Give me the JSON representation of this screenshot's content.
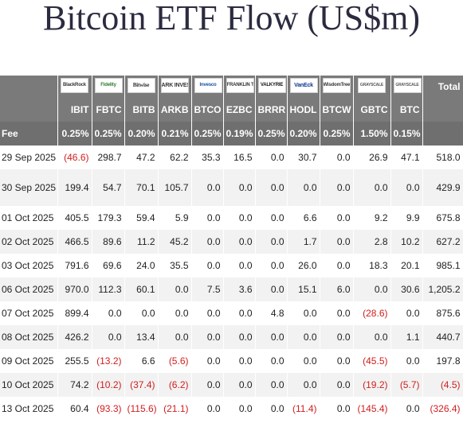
{
  "title": "Bitcoin ETF Flow (US$m)",
  "logos": [
    "BlackRock",
    "Fidelity",
    "Bitwise",
    "ARK INVEST",
    "Invesco",
    "FRANKLIN TEMPLETON",
    "VALKYRIE",
    "VanEck",
    "WisdomTree",
    "GRAYSCALE",
    "GRAYSCALE"
  ],
  "total_label": "Total",
  "tickers": [
    "IBIT",
    "FBTC",
    "BITB",
    "ARKB",
    "BTCO",
    "EZBC",
    "BRRR",
    "HODL",
    "BTCW",
    "GBTC",
    "BTC"
  ],
  "fee_label": "Fee",
  "fees": [
    "0.25%",
    "0.25%",
    "0.20%",
    "0.21%",
    "0.25%",
    "0.19%",
    "0.25%",
    "0.20%",
    "0.25%",
    "1.50%",
    "0.15%"
  ],
  "rows": [
    {
      "date": "29 Sep 2025",
      "values": [
        "(46.6)",
        "298.7",
        "47.2",
        "62.2",
        "35.3",
        "16.5",
        "0.0",
        "30.7",
        "0.0",
        "26.9",
        "47.1"
      ],
      "total": "518.0"
    },
    {
      "date": "30 Sep 2025",
      "values": [
        "199.4",
        "54.7",
        "70.1",
        "105.7",
        "0.0",
        "0.0",
        "0.0",
        "0.0",
        "0.0",
        "0.0",
        "0.0"
      ],
      "total": "429.9"
    },
    {
      "date": "01 Oct 2025",
      "values": [
        "405.5",
        "179.3",
        "59.4",
        "5.9",
        "0.0",
        "0.0",
        "0.0",
        "6.6",
        "0.0",
        "9.2",
        "9.9"
      ],
      "total": "675.8"
    },
    {
      "date": "02 Oct 2025",
      "values": [
        "466.5",
        "89.6",
        "11.2",
        "45.2",
        "0.0",
        "0.0",
        "0.0",
        "1.7",
        "0.0",
        "2.8",
        "10.2"
      ],
      "total": "627.2"
    },
    {
      "date": "03 Oct 2025",
      "values": [
        "791.6",
        "69.6",
        "24.0",
        "35.5",
        "0.0",
        "0.0",
        "0.0",
        "26.0",
        "0.0",
        "18.3",
        "20.1"
      ],
      "total": "985.1"
    },
    {
      "date": "06 Oct 2025",
      "values": [
        "970.0",
        "112.3",
        "60.1",
        "0.0",
        "7.5",
        "3.6",
        "0.0",
        "15.1",
        "6.0",
        "0.0",
        "30.6"
      ],
      "total": "1,205.2"
    },
    {
      "date": "07 Oct 2025",
      "values": [
        "899.4",
        "0.0",
        "0.0",
        "0.0",
        "0.0",
        "0.0",
        "4.8",
        "0.0",
        "0.0",
        "(28.6)",
        "0.0"
      ],
      "total": "875.6"
    },
    {
      "date": "08 Oct 2025",
      "values": [
        "426.2",
        "0.0",
        "13.4",
        "0.0",
        "0.0",
        "0.0",
        "0.0",
        "0.0",
        "0.0",
        "0.0",
        "1.1"
      ],
      "total": "440.7"
    },
    {
      "date": "09 Oct 2025",
      "values": [
        "255.5",
        "(13.2)",
        "6.6",
        "(5.6)",
        "0.0",
        "0.0",
        "0.0",
        "0.0",
        "0.0",
        "(45.5)",
        "0.0"
      ],
      "total": "197.8"
    },
    {
      "date": "10 Oct 2025",
      "values": [
        "74.2",
        "(10.2)",
        "(37.4)",
        "(6.2)",
        "0.0",
        "0.0",
        "0.0",
        "0.0",
        "0.0",
        "(19.2)",
        "(5.7)"
      ],
      "total": "(4.5)"
    },
    {
      "date": "13 Oct 2025",
      "values": [
        "60.4",
        "(93.3)",
        "(115.6)",
        "(21.1)",
        "0.0",
        "0.0",
        "0.0",
        "(11.4)",
        "0.0",
        "(145.4)",
        "0.0"
      ],
      "total": "(326.4)"
    }
  ],
  "colors": {
    "header_bg": "#7a7a7a",
    "negative": "#d01e1e",
    "title": "#2b2b40"
  }
}
